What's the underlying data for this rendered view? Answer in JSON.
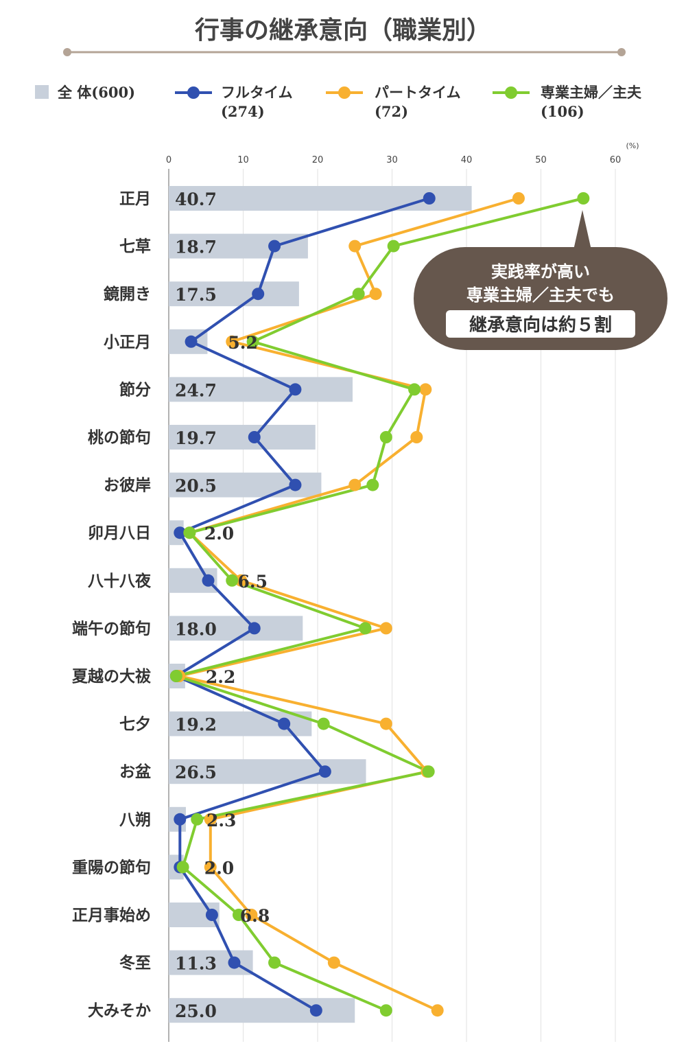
{
  "chart_data": {
    "type": "bar+line",
    "title": "行事の継承意向（職業別）",
    "unit": "(%)",
    "xlim": [
      0,
      60
    ],
    "ticks": [
      0,
      10,
      20,
      30,
      40,
      50,
      60
    ],
    "grid": true,
    "legend_position": "top",
    "categories": [
      "正月",
      "七草",
      "鏡開き",
      "小正月",
      "節分",
      "桃の節句",
      "お彼岸",
      "卯月八日",
      "八十八夜",
      "端午の節句",
      "夏越の大祓",
      "七夕",
      "お盆",
      "八朔",
      "重陽の節句",
      "正月事始め",
      "冬至",
      "大みそか"
    ],
    "bar_series": {
      "name": "全 体(600)",
      "color": "#c8d0db",
      "values": [
        40.7,
        18.7,
        17.5,
        5.2,
        24.7,
        19.7,
        20.5,
        2.0,
        6.5,
        18.0,
        2.2,
        19.2,
        26.5,
        2.3,
        2.0,
        6.8,
        11.3,
        25.0
      ],
      "labels": [
        "40.7",
        "18.7",
        "17.5",
        "5.2",
        "24.7",
        "19.7",
        "20.5",
        "2.0",
        "6.5",
        "18.0",
        "2.2",
        "19.2",
        "26.5",
        "2.3",
        "2.0",
        "6.8",
        "11.3",
        "25.0"
      ]
    },
    "line_series": [
      {
        "name_line1": "フルタイム",
        "name_line2": "(274)",
        "color": "#3050b0",
        "values": [
          35.0,
          14.2,
          12.0,
          3.0,
          17.0,
          11.5,
          17.0,
          1.5,
          5.3,
          11.5,
          1.0,
          15.5,
          21.0,
          1.5,
          1.5,
          5.8,
          8.8,
          19.8
        ]
      },
      {
        "name_line1": "パートタイム",
        "name_line2": "(72)",
        "color": "#f8b030",
        "values": [
          47.0,
          25.0,
          27.8,
          8.5,
          34.5,
          33.3,
          25.0,
          2.8,
          9.7,
          29.2,
          1.4,
          29.2,
          34.7,
          5.6,
          5.6,
          11.1,
          22.2,
          36.1
        ]
      },
      {
        "name_line1": "専業主婦／主夫",
        "name_line2": "(106)",
        "color": "#80cc30",
        "values": [
          55.7,
          30.2,
          25.5,
          11.3,
          33.0,
          29.2,
          27.4,
          2.8,
          8.5,
          26.4,
          1.0,
          20.8,
          34.9,
          3.8,
          1.9,
          9.4,
          14.2,
          29.2
        ]
      }
    ],
    "callout": {
      "line1": "実践率が高い",
      "line2": "専業主婦／主夫でも",
      "line3": "継承意向は約５割",
      "bg_color": "#66574d"
    }
  }
}
